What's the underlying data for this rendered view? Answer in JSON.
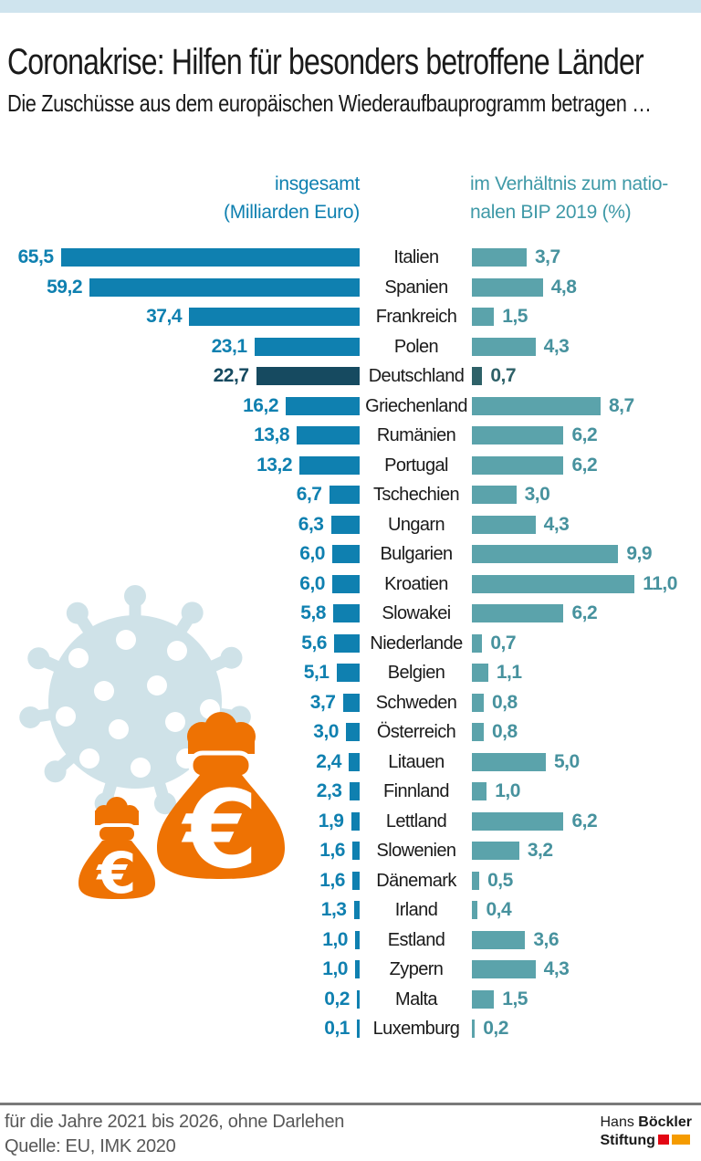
{
  "header": {
    "title": "Coronakrise: Hilfen für besonders betroffene Länder",
    "subtitle": "Die Zuschüsse aus dem europäischen Wiederaufbauprogramm betragen …"
  },
  "chart_data": {
    "type": "bar",
    "orientation": "horizontal-bidirectional",
    "left_header": [
      "insgesamt",
      "(Milliarden Euro)"
    ],
    "right_header": [
      "im Verhältnis zum natio-",
      "nalen BIP 2019 (%)"
    ],
    "categories": [
      "Italien",
      "Spanien",
      "Frankreich",
      "Polen",
      "Deutschland",
      "Griechenland",
      "Rumänien",
      "Portugal",
      "Tschechien",
      "Ungarn",
      "Bulgarien",
      "Kroatien",
      "Slowakei",
      "Niederlande",
      "Belgien",
      "Schweden",
      "Österreich",
      "Litauen",
      "Finnland",
      "Lettland",
      "Slowenien",
      "Dänemark",
      "Irland",
      "Estland",
      "Zypern",
      "Malta",
      "Luxemburg"
    ],
    "series": [
      {
        "name": "insgesamt (Milliarden Euro)",
        "values": [
          65.5,
          59.2,
          37.4,
          23.1,
          22.7,
          16.2,
          13.8,
          13.2,
          6.7,
          6.3,
          6.0,
          6.0,
          5.8,
          5.6,
          5.1,
          3.7,
          3.0,
          2.4,
          2.3,
          1.9,
          1.6,
          1.6,
          1.3,
          1.0,
          1.0,
          0.2,
          0.1
        ]
      },
      {
        "name": "im Verhältnis zum nationalen BIP 2019 (%)",
        "values": [
          3.7,
          4.8,
          1.5,
          4.3,
          0.7,
          8.7,
          6.2,
          6.2,
          3.0,
          4.3,
          9.9,
          11.0,
          6.2,
          0.7,
          1.1,
          0.8,
          0.8,
          5.0,
          1.0,
          6.2,
          3.2,
          0.5,
          0.4,
          3.6,
          4.3,
          1.5,
          0.2
        ]
      }
    ],
    "highlight_category": "Deutschland",
    "decimal_separator": ",",
    "colors": {
      "left_bar": "#0f80b0",
      "left_bar_highlight": "#164a60",
      "left_value": "#0f80b0",
      "left_value_highlight": "#164a60",
      "right_bar": "#5ba3ab",
      "right_bar_highlight": "#2e6168",
      "right_value": "#47929e",
      "right_value_highlight": "#2e6168",
      "left_header": "#0f80b0",
      "right_header": "#3f99a7",
      "top_strip": "#cfe4ee",
      "virus": "#cfe2e8",
      "money_bag": "#ee7203",
      "footnote": "#585858",
      "divider": "#7a7a7a",
      "logo_red": "#e30613",
      "logo_orange": "#f59b00"
    }
  },
  "footer": {
    "note1": "für die Jahre 2021 bis 2026, ohne Darlehen",
    "note2": "Quelle: EU, IMK 2020",
    "logo": {
      "hans": "Hans",
      "boeckler": "Böckler",
      "stiftung": "Stiftung"
    }
  }
}
